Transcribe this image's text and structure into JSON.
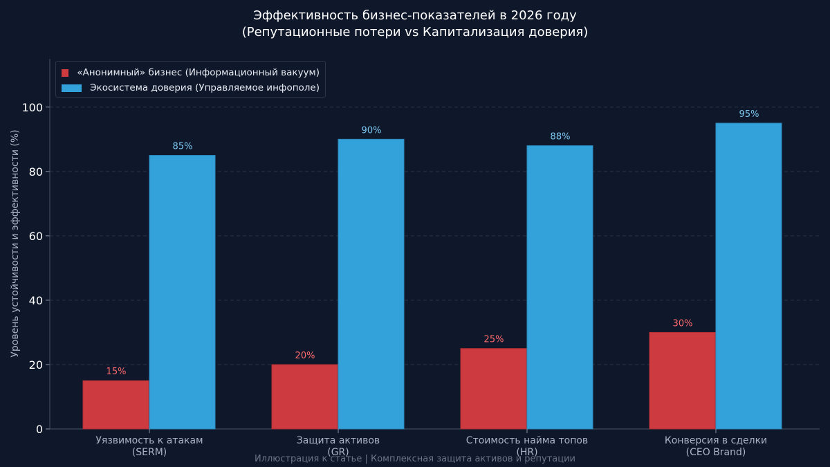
{
  "chart_data": {
    "type": "bar",
    "title": "Эффективность бизнес-показателей в 2026 году",
    "subtitle": "(Репутационные потери vs Капитализация доверия)",
    "xlabel": "",
    "ylabel": "Уровень устойчивости и эффективности (%)",
    "categories": [
      [
        "Уязвимость к атакам",
        "(SERM)"
      ],
      [
        "Защита активов",
        "(GR)"
      ],
      [
        "Стоимость найма топов",
        "(HR)"
      ],
      [
        "Конверсия в сделки",
        "(CEO Brand)"
      ]
    ],
    "series": [
      {
        "name": "«Анонимный» бизнес (Информационный вакуум)",
        "values": [
          15,
          20,
          25,
          30
        ],
        "value_labels": [
          "15%",
          "20%",
          "25%",
          "30%"
        ],
        "color": "#cd3b41",
        "label_color": "#ff6b6e"
      },
      {
        "name": "Экосистема доверия (Управляемое инфополе)",
        "values": [
          85,
          90,
          88,
          95
        ],
        "value_labels": [
          "85%",
          "90%",
          "88%",
          "95%"
        ],
        "color": "#33a2db",
        "label_color": "#7cc8f0"
      }
    ],
    "ylim": [
      0,
      115
    ],
    "yticks": [
      0,
      20,
      40,
      60,
      80,
      100
    ],
    "grid": true,
    "legend": "top-left",
    "footer": "Иллюстрация к статье | Комплексная защита активов и репутации"
  }
}
